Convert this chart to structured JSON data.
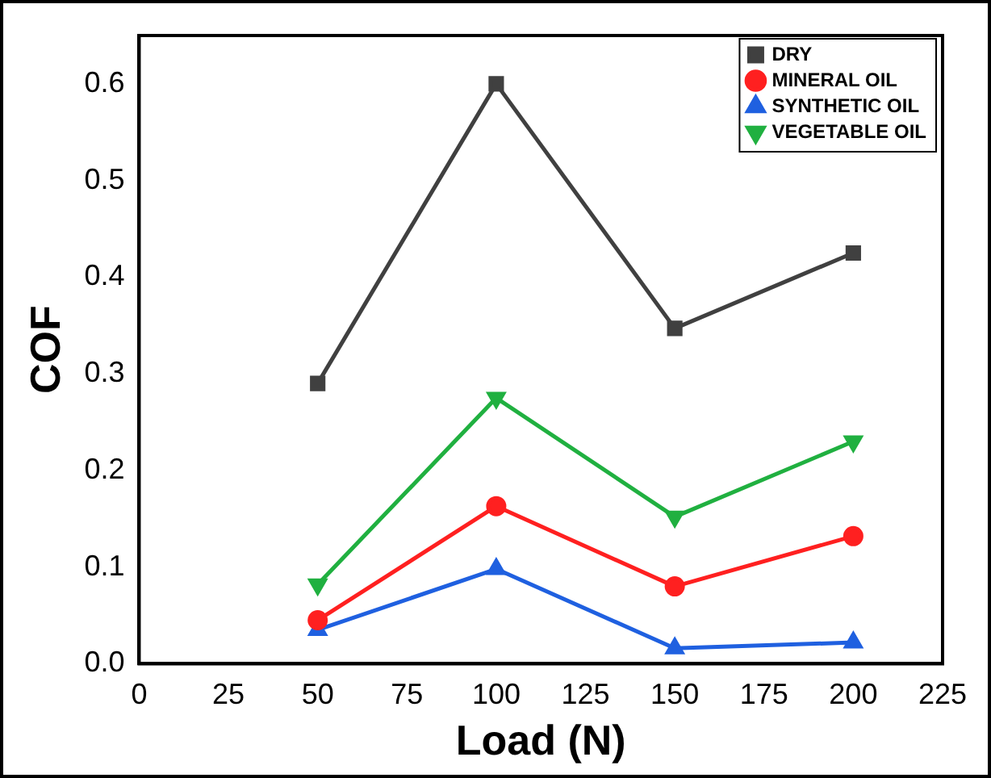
{
  "chart_data": {
    "type": "line",
    "xlabel": "Load (N)",
    "ylabel": "COF",
    "x": [
      50,
      100,
      150,
      200
    ],
    "series": [
      {
        "name": "DRY",
        "color": "#404040",
        "marker": "square",
        "values": [
          0.29,
          0.6,
          0.347,
          0.425
        ]
      },
      {
        "name": "MINERAL OIL",
        "color": "#ff2020",
        "marker": "circle",
        "values": [
          0.045,
          0.163,
          0.08,
          0.132
        ]
      },
      {
        "name": "SYNTHETIC OIL",
        "color": "#1f60e0",
        "marker": "triangle",
        "values": [
          0.035,
          0.098,
          0.016,
          0.022
        ]
      },
      {
        "name": "VEGETABLE OIL",
        "color": "#20b040",
        "marker": "triangle-down",
        "values": [
          0.082,
          0.275,
          0.152,
          0.23
        ]
      }
    ],
    "xlim": [
      0,
      225
    ],
    "xticks": [
      0,
      25,
      50,
      75,
      100,
      125,
      150,
      175,
      200,
      225
    ],
    "ylim": [
      0,
      0.65
    ],
    "yticks": [
      {
        "value": 0,
        "label": "0.0"
      },
      0.1,
      0.2,
      0.3,
      0.4,
      0.5,
      0.6
    ],
    "legend": "top right",
    "grid": false,
    "line_style": "solid"
  }
}
